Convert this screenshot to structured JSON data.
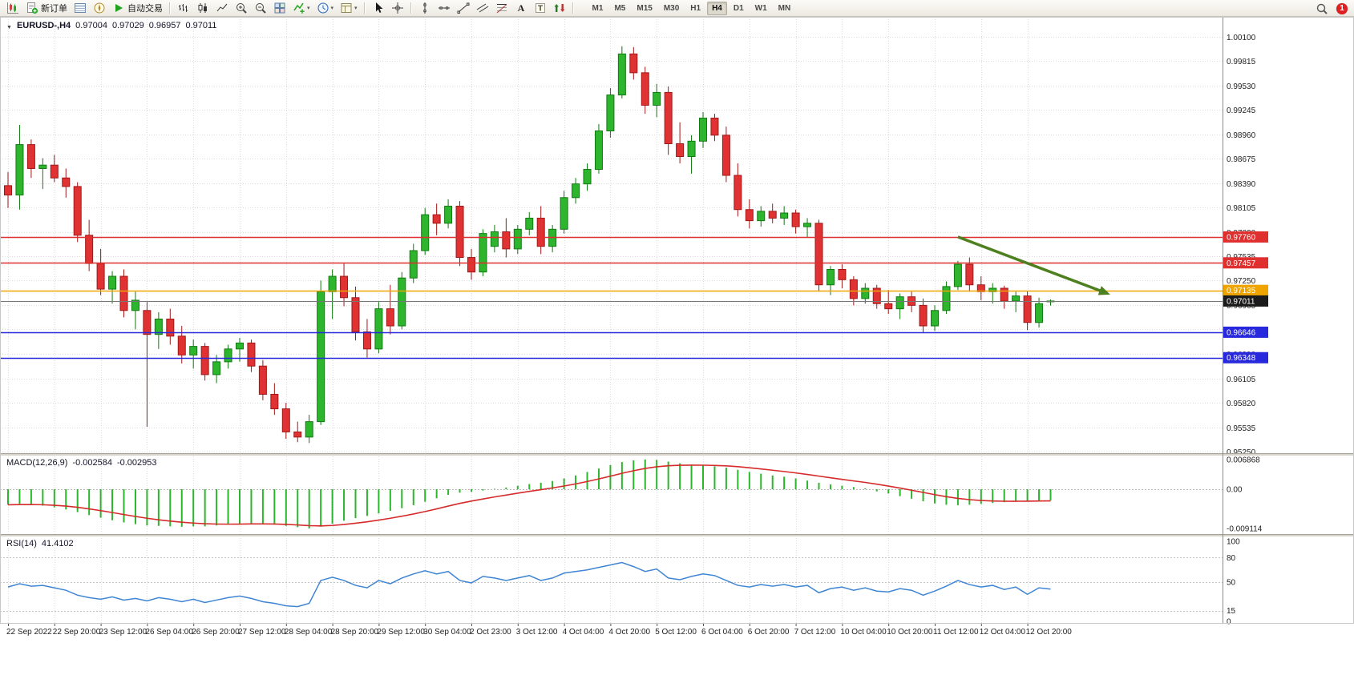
{
  "toolbar": {
    "buttons_left": [
      {
        "name": "new-chart-button",
        "icon": "chart-candles"
      },
      {
        "name": "new-order-button",
        "icon": "new-order",
        "label": "新订单"
      },
      {
        "name": "market-watch-button",
        "icon": "market-watch"
      },
      {
        "name": "navigator-button",
        "icon": "navigator"
      },
      {
        "name": "auto-trading-button",
        "icon": "play",
        "label": "自动交易"
      },
      {
        "sep": true
      },
      {
        "name": "bar-chart-button",
        "icon": "bars"
      },
      {
        "name": "candlestick-chart-button",
        "icon": "candles-icon"
      },
      {
        "name": "line-chart-button",
        "icon": "line-icon"
      },
      {
        "name": "zoom-in-button",
        "icon": "zoom-in"
      },
      {
        "name": "zoom-out-button",
        "icon": "zoom-out"
      },
      {
        "name": "tile-windows-button",
        "icon": "tile"
      },
      {
        "name": "indicators-button",
        "icon": "indicator",
        "dropdown": true
      },
      {
        "name": "periods-button",
        "icon": "clock",
        "dropdown": true
      },
      {
        "name": "templates-button",
        "icon": "template",
        "dropdown": true
      },
      {
        "sep": true
      },
      {
        "name": "cursor-button",
        "icon": "cursor"
      },
      {
        "name": "crosshair-button",
        "icon": "crosshair"
      },
      {
        "sep": true
      },
      {
        "name": "vertical-line-button",
        "icon": "vline"
      },
      {
        "name": "horizontal-line-button",
        "icon": "hline"
      },
      {
        "name": "trendline-button",
        "icon": "trendline"
      },
      {
        "name": "channel-button",
        "icon": "channel"
      },
      {
        "name": "fibonacci-button",
        "icon": "fibo"
      },
      {
        "name": "text-button",
        "icon": "text-a"
      },
      {
        "name": "text-label-button",
        "icon": "text-t"
      },
      {
        "name": "arrows-button",
        "icon": "arrows"
      },
      {
        "sep": true
      }
    ],
    "timeframes": {
      "options": [
        "M1",
        "M5",
        "M15",
        "M30",
        "H1",
        "H4",
        "D1",
        "W1",
        "MN"
      ],
      "active": "H4"
    },
    "right": {
      "badge_count": "1"
    }
  },
  "chart": {
    "symbol_info": {
      "caret": "▼",
      "symbol": "EURUSD-,H4",
      "open": "0.97004",
      "high": "0.97029",
      "low": "0.96957",
      "close": "0.97011"
    },
    "y_axis_labels": [
      "1.00100",
      "0.99815",
      "0.99530",
      "0.99245",
      "0.98960",
      "0.98675",
      "0.98390",
      "0.98105",
      "0.97820",
      "0.97535",
      "0.97250",
      "0.96965",
      "0.96680",
      "0.96390",
      "0.96105",
      "0.95820",
      "0.95535",
      "0.95250"
    ],
    "x_axis_labels": [
      "22 Sep 2022",
      "22 Sep 20:00",
      "23 Sep 12:00",
      "26 Sep 04:00",
      "26 Sep 20:00",
      "27 Sep 12:00",
      "28 Sep 04:00",
      "28 Sep 20:00",
      "29 Sep 12:00",
      "30 Sep 04:00",
      "2 Oct 23:00",
      "3 Oct 12:00",
      "4 Oct 04:00",
      "4 Oct 20:00",
      "5 Oct 12:00",
      "6 Oct 04:00",
      "6 Oct 20:00",
      "7 Oct 12:00",
      "10 Oct 04:00",
      "10 Oct 20:00",
      "11 Oct 12:00",
      "12 Oct 04:00",
      "12 Oct 20:00"
    ],
    "price_lines": [
      {
        "price": 0.9776,
        "label": "0.97760",
        "color": "#e02f2f",
        "name": "resistance-line-1"
      },
      {
        "price": 0.97457,
        "label": "0.97457",
        "color": "#e02f2f",
        "name": "resistance-line-2"
      },
      {
        "price": 0.97135,
        "label": "0.97135",
        "color": "#f0a400",
        "name": "pivot-line"
      },
      {
        "price": 0.97011,
        "label": "0.97011",
        "color": "#777777",
        "tag_color": "#1b1b1b",
        "name": "current-price-line",
        "current": true
      },
      {
        "price": 0.96646,
        "label": "0.96646",
        "color": "#2828dd",
        "name": "support-line-1"
      },
      {
        "price": 0.96348,
        "label": "0.96348",
        "color": "#2828dd",
        "name": "support-line-2"
      }
    ],
    "trend_arrow": {
      "from_bar": 82,
      "from_price": 0.9776,
      "to_bar": 94.5,
      "to_price": 0.9712,
      "color": "#4e8020",
      "width": 3.5
    },
    "colors": {
      "bull_fill": "#2db52d",
      "bull_stroke": "#117a11",
      "bear_fill": "#e03232",
      "bear_stroke": "#a01818",
      "grid": "#dcdcdc",
      "axis_text": "#222222",
      "background": "#ffffff",
      "macd_histogram": "#2db52d",
      "macd_signal": "#d62b2b",
      "rsi_line": "#3f85d4"
    }
  },
  "indicators": {
    "macd": {
      "name": "MACD(12,26,9)",
      "value": "-0.002584",
      "signal_value": "-0.002953",
      "scale": [
        {
          "label": "0.006868",
          "value": 0.006868
        },
        {
          "label": "0.00",
          "value": 0
        },
        {
          "label": "-0.009114",
          "value": -0.009114
        }
      ]
    },
    "rsi": {
      "name": "RSI(14)",
      "value": "41.4102",
      "scale": [
        {
          "label": "100",
          "value": 100
        },
        {
          "label": "80",
          "value": 80
        },
        {
          "label": "50",
          "value": 50
        },
        {
          "label": "15",
          "value": 15
        },
        {
          "label": "0",
          "value": 0
        }
      ],
      "levels": [
        80,
        50,
        15
      ]
    }
  },
  "chart_data": {
    "type": "candlestick",
    "symbol": "EURUSD-",
    "timeframe": "H4",
    "y_range": [
      0.9525,
      1.001
    ],
    "ohlc": [
      [
        0.9836,
        0.9852,
        0.981,
        0.9825
      ],
      [
        0.9825,
        0.9907,
        0.9808,
        0.9884
      ],
      [
        0.9884,
        0.989,
        0.9845,
        0.9856
      ],
      [
        0.9856,
        0.9868,
        0.9832,
        0.986
      ],
      [
        0.986,
        0.9872,
        0.984,
        0.9845
      ],
      [
        0.9845,
        0.9856,
        0.9822,
        0.9835
      ],
      [
        0.9835,
        0.984,
        0.977,
        0.9778
      ],
      [
        0.9778,
        0.9796,
        0.9736,
        0.9745
      ],
      [
        0.9745,
        0.9762,
        0.9708,
        0.9715
      ],
      [
        0.9715,
        0.9736,
        0.9698,
        0.973
      ],
      [
        0.973,
        0.9738,
        0.9682,
        0.969
      ],
      [
        0.969,
        0.9712,
        0.9668,
        0.9702
      ],
      [
        0.969,
        0.97,
        0.9554,
        0.9662
      ],
      [
        0.9662,
        0.9688,
        0.9645,
        0.968
      ],
      [
        0.968,
        0.9692,
        0.965,
        0.966
      ],
      [
        0.966,
        0.9672,
        0.9628,
        0.9638
      ],
      [
        0.9638,
        0.9656,
        0.9622,
        0.9648
      ],
      [
        0.9648,
        0.9652,
        0.9608,
        0.9615
      ],
      [
        0.9615,
        0.9638,
        0.9605,
        0.963
      ],
      [
        0.963,
        0.965,
        0.9622,
        0.9645
      ],
      [
        0.9645,
        0.9658,
        0.963,
        0.9652
      ],
      [
        0.9652,
        0.9656,
        0.9618,
        0.9625
      ],
      [
        0.9625,
        0.9632,
        0.9585,
        0.9592
      ],
      [
        0.9592,
        0.9605,
        0.9568,
        0.9575
      ],
      [
        0.9575,
        0.9582,
        0.954,
        0.9548
      ],
      [
        0.9548,
        0.956,
        0.9536,
        0.9542
      ],
      [
        0.9542,
        0.9568,
        0.9535,
        0.956
      ],
      [
        0.956,
        0.9725,
        0.9556,
        0.9712
      ],
      [
        0.9712,
        0.9738,
        0.968,
        0.973
      ],
      [
        0.973,
        0.9745,
        0.9695,
        0.9705
      ],
      [
        0.9705,
        0.9718,
        0.9655,
        0.9665
      ],
      [
        0.9665,
        0.968,
        0.9635,
        0.9645
      ],
      [
        0.9645,
        0.97,
        0.964,
        0.9692
      ],
      [
        0.9692,
        0.972,
        0.9662,
        0.9672
      ],
      [
        0.9672,
        0.9735,
        0.9668,
        0.9728
      ],
      [
        0.9728,
        0.9768,
        0.9722,
        0.976
      ],
      [
        0.976,
        0.981,
        0.9755,
        0.9802
      ],
      [
        0.9802,
        0.9815,
        0.9778,
        0.9792
      ],
      [
        0.9792,
        0.982,
        0.9786,
        0.9812
      ],
      [
        0.9812,
        0.9818,
        0.9742,
        0.9752
      ],
      [
        0.9752,
        0.9762,
        0.9726,
        0.9735
      ],
      [
        0.9735,
        0.9785,
        0.973,
        0.978
      ],
      [
        0.9765,
        0.979,
        0.9758,
        0.9782
      ],
      [
        0.9782,
        0.9798,
        0.9752,
        0.9762
      ],
      [
        0.9762,
        0.979,
        0.9756,
        0.9785
      ],
      [
        0.9785,
        0.9805,
        0.9778,
        0.9798
      ],
      [
        0.9798,
        0.9812,
        0.9756,
        0.9765
      ],
      [
        0.9765,
        0.979,
        0.9758,
        0.9785
      ],
      [
        0.9785,
        0.983,
        0.978,
        0.9822
      ],
      [
        0.9822,
        0.9845,
        0.9815,
        0.9838
      ],
      [
        0.9838,
        0.9862,
        0.983,
        0.9855
      ],
      [
        0.9855,
        0.9908,
        0.985,
        0.99
      ],
      [
        0.99,
        0.995,
        0.9892,
        0.9942
      ],
      [
        0.9942,
        0.9999,
        0.9938,
        0.999
      ],
      [
        0.999,
        0.9998,
        0.996,
        0.9968
      ],
      [
        0.9968,
        0.9975,
        0.992,
        0.993
      ],
      [
        0.993,
        0.9955,
        0.9916,
        0.9945
      ],
      [
        0.9945,
        0.9952,
        0.9872,
        0.9885
      ],
      [
        0.9885,
        0.991,
        0.9862,
        0.987
      ],
      [
        0.987,
        0.9895,
        0.985,
        0.9888
      ],
      [
        0.9888,
        0.9922,
        0.988,
        0.9915
      ],
      [
        0.9915,
        0.992,
        0.9888,
        0.9895
      ],
      [
        0.9895,
        0.9905,
        0.984,
        0.9848
      ],
      [
        0.9848,
        0.9862,
        0.98,
        0.9808
      ],
      [
        0.9808,
        0.982,
        0.9786,
        0.9795
      ],
      [
        0.9795,
        0.9812,
        0.9788,
        0.9806
      ],
      [
        0.9806,
        0.9815,
        0.9792,
        0.9798
      ],
      [
        0.9798,
        0.9812,
        0.979,
        0.9804
      ],
      [
        0.9804,
        0.9808,
        0.978,
        0.9788
      ],
      [
        0.9788,
        0.9798,
        0.9776,
        0.9792
      ],
      [
        0.9792,
        0.9796,
        0.9712,
        0.972
      ],
      [
        0.972,
        0.9742,
        0.9708,
        0.9738
      ],
      [
        0.9738,
        0.9744,
        0.9716,
        0.9726
      ],
      [
        0.9726,
        0.973,
        0.9696,
        0.9704
      ],
      [
        0.9704,
        0.9722,
        0.9698,
        0.9716
      ],
      [
        0.9716,
        0.972,
        0.9692,
        0.9698
      ],
      [
        0.9698,
        0.9714,
        0.9686,
        0.9692
      ],
      [
        0.9692,
        0.971,
        0.968,
        0.9706
      ],
      [
        0.9706,
        0.9712,
        0.9688,
        0.9696
      ],
      [
        0.9696,
        0.9704,
        0.9664,
        0.9672
      ],
      [
        0.9672,
        0.9696,
        0.9666,
        0.969
      ],
      [
        0.969,
        0.9724,
        0.9686,
        0.9718
      ],
      [
        0.9718,
        0.9748,
        0.9714,
        0.9744
      ],
      [
        0.9744,
        0.9752,
        0.9712,
        0.972
      ],
      [
        0.972,
        0.973,
        0.9702,
        0.9712
      ],
      [
        0.9712,
        0.9722,
        0.9698,
        0.9716
      ],
      [
        0.9716,
        0.9719,
        0.9692,
        0.9701
      ],
      [
        0.9701,
        0.9712,
        0.9688,
        0.9707
      ],
      [
        0.9707,
        0.9713,
        0.9667,
        0.9676
      ],
      [
        0.9676,
        0.9705,
        0.967,
        0.9698
      ],
      [
        0.97004,
        0.97029,
        0.96957,
        0.97011
      ]
    ],
    "macd_histogram": [
      -0.0036,
      -0.0034,
      -0.0035,
      -0.0038,
      -0.0042,
      -0.0047,
      -0.0053,
      -0.006,
      -0.0066,
      -0.0072,
      -0.0077,
      -0.0081,
      -0.0084,
      -0.0085,
      -0.0086,
      -0.0087,
      -0.0086,
      -0.0086,
      -0.0084,
      -0.0082,
      -0.008,
      -0.0079,
      -0.008,
      -0.0082,
      -0.0085,
      -0.0088,
      -0.0091,
      -0.0087,
      -0.008,
      -0.0073,
      -0.0067,
      -0.0062,
      -0.0056,
      -0.005,
      -0.0044,
      -0.0037,
      -0.0029,
      -0.0021,
      -0.0013,
      -0.0008,
      -0.0006,
      -0.0003,
      0.0001,
      0.0004,
      0.0008,
      0.0012,
      0.0015,
      0.0019,
      0.0025,
      0.0032,
      0.004,
      0.0048,
      0.0056,
      0.0063,
      0.0067,
      0.0069,
      0.0068,
      0.0064,
      0.006,
      0.0057,
      0.0055,
      0.0053,
      0.005,
      0.0045,
      0.004,
      0.0036,
      0.0032,
      0.0029,
      0.0025,
      0.002,
      0.0015,
      0.0011,
      0.0008,
      0.0005,
      0.0002,
      -0.0005,
      -0.001,
      -0.0016,
      -0.0022,
      -0.0028,
      -0.0033,
      -0.0036,
      -0.0037,
      -0.0036,
      -0.0034,
      -0.0032,
      -0.003,
      -0.0028,
      -0.0027,
      -0.0026,
      -0.002584
    ],
    "rsi_values": [
      44,
      48,
      45,
      46,
      43,
      40,
      34,
      31,
      29,
      32,
      28,
      30,
      27,
      31,
      29,
      26,
      29,
      25,
      28,
      31,
      33,
      30,
      26,
      24,
      21,
      20,
      24,
      52,
      56,
      52,
      46,
      43,
      52,
      48,
      55,
      60,
      64,
      60,
      63,
      52,
      49,
      57,
      55,
      52,
      55,
      58,
      52,
      55,
      61,
      63,
      65,
      68,
      71,
      74,
      69,
      63,
      66,
      55,
      53,
      57,
      60,
      58,
      52,
      46,
      44,
      47,
      45,
      47,
      44,
      46,
      37,
      42,
      44,
      40,
      43,
      39,
      38,
      42,
      40,
      34,
      39,
      45,
      52,
      47,
      44,
      46,
      41,
      44,
      35,
      43,
      41.41
    ]
  }
}
